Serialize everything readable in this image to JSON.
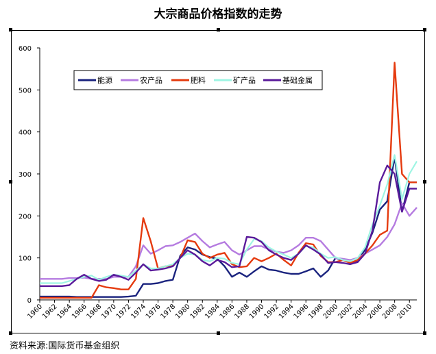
{
  "title": "大宗商品价格指数的走势",
  "source": "资料来源:国际货币基金组织",
  "chart_data": {
    "type": "line",
    "title": "大宗商品价格指数的走势",
    "xlabel": "",
    "ylabel": "",
    "ylim": [
      0,
      600
    ],
    "y_ticks": [
      "0",
      "100",
      "200",
      "300",
      "400",
      "500",
      "600"
    ],
    "x_ticks": [
      "1960",
      "1962",
      "1964",
      "1966",
      "1968",
      "1970",
      "1972",
      "1974",
      "1976",
      "1978",
      "1980",
      "1982",
      "1984",
      "1986",
      "1988",
      "1990",
      "1992",
      "1994",
      "1996",
      "1998",
      "2000",
      "2002",
      "2004",
      "2006",
      "2008",
      "2010"
    ],
    "legend_position": "top-left",
    "grid": false,
    "x": [
      1960,
      1961,
      1962,
      1963,
      1964,
      1965,
      1966,
      1967,
      1968,
      1969,
      1970,
      1971,
      1972,
      1973,
      1974,
      1975,
      1976,
      1977,
      1978,
      1979,
      1980,
      1981,
      1982,
      1983,
      1984,
      1985,
      1986,
      1987,
      1988,
      1989,
      1990,
      1991,
      1992,
      1993,
      1994,
      1995,
      1996,
      1997,
      1998,
      1999,
      2000,
      2001,
      2002,
      2003,
      2004,
      2005,
      2006,
      2007,
      2008,
      2009,
      2010,
      2011
    ],
    "series": [
      {
        "name": "能源",
        "color": "#1a237e",
        "values": [
          8,
          8,
          8,
          8,
          8,
          7,
          7,
          7,
          7,
          7,
          7,
          7,
          8,
          10,
          38,
          38,
          40,
          45,
          48,
          105,
          125,
          120,
          108,
          102,
          98,
          80,
          55,
          65,
          55,
          68,
          80,
          72,
          70,
          65,
          62,
          62,
          68,
          75,
          55,
          70,
          100,
          95,
          88,
          92,
          120,
          160,
          215,
          235,
          340,
          210,
          280,
          280
        ]
      },
      {
        "name": "农产品",
        "color": "#b57be0",
        "values": [
          50,
          50,
          50,
          50,
          52,
          52,
          53,
          50,
          50,
          50,
          55,
          55,
          55,
          80,
          130,
          110,
          118,
          128,
          130,
          138,
          148,
          158,
          140,
          125,
          132,
          138,
          118,
          108,
          118,
          128,
          128,
          120,
          115,
          112,
          118,
          130,
          148,
          148,
          140,
          120,
          100,
          98,
          95,
          100,
          110,
          120,
          130,
          150,
          180,
          230,
          200,
          220
        ]
      },
      {
        "name": "肥料",
        "color": "#e53a0e",
        "values": [
          5,
          5,
          5,
          5,
          5,
          5,
          5,
          5,
          35,
          30,
          28,
          25,
          25,
          50,
          195,
          140,
          75,
          80,
          82,
          100,
          142,
          138,
          110,
          100,
          108,
          112,
          85,
          78,
          80,
          100,
          92,
          100,
          110,
          95,
          82,
          112,
          135,
          132,
          105,
          90,
          90,
          95,
          88,
          95,
          110,
          130,
          155,
          165,
          565,
          300,
          280,
          280
        ]
      },
      {
        "name": "矿产品",
        "color": "#9ef5e3",
        "values": [
          40,
          40,
          40,
          40,
          45,
          50,
          55,
          58,
          48,
          55,
          60,
          58,
          55,
          70,
          85,
          75,
          75,
          80,
          85,
          100,
          110,
          108,
          95,
          92,
          100,
          98,
          88,
          85,
          120,
          145,
          140,
          125,
          115,
          108,
          100,
          110,
          128,
          125,
          110,
          100,
          102,
          95,
          92,
          100,
          125,
          180,
          225,
          275,
          345,
          240,
          300,
          330
        ]
      },
      {
        "name": "基础金属",
        "color": "#5a1a9a",
        "values": [
          33,
          33,
          33,
          33,
          35,
          50,
          60,
          50,
          45,
          48,
          60,
          55,
          48,
          65,
          85,
          70,
          72,
          75,
          80,
          100,
          118,
          108,
          92,
          82,
          95,
          90,
          78,
          80,
          150,
          148,
          138,
          118,
          108,
          100,
          95,
          110,
          130,
          120,
          108,
          88,
          90,
          88,
          85,
          90,
          110,
          165,
          280,
          320,
          300,
          210,
          265,
          265
        ]
      }
    ]
  }
}
